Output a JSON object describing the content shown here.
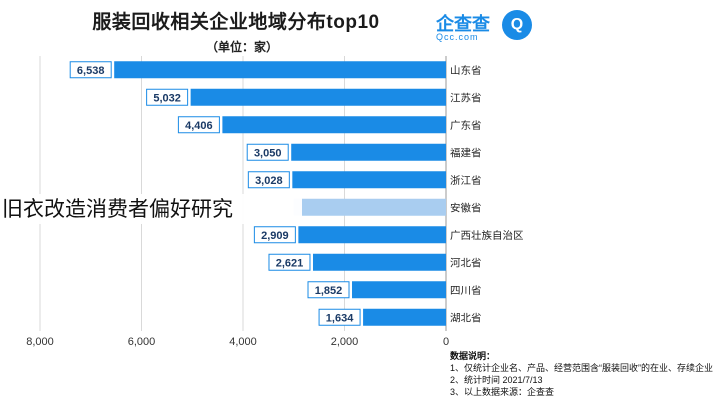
{
  "chart_data": {
    "type": "bar",
    "orientation": "horizontal",
    "title": "服装回收相关企业地域分布top10",
    "unit_label": "（单位：家）",
    "categories": [
      "山东省",
      "江苏省",
      "广东省",
      "福建省",
      "浙江省",
      "安徽省",
      "广西壮族自治区",
      "河北省",
      "四川省",
      "湖北省"
    ],
    "values": [
      6538,
      5032,
      4406,
      3050,
      3028,
      3000,
      2909,
      2621,
      1852,
      1634
    ],
    "value_labels": [
      "6,538",
      "5,032",
      "4,406",
      "3,050",
      "3,028",
      "",
      "2,909",
      "2,621",
      "1,852",
      "1,634"
    ],
    "highlight_index": 5,
    "x_ticks": [
      "8,000",
      "6,000",
      "4,000",
      "2,000",
      "0"
    ],
    "x_tick_values": [
      8000,
      6000,
      4000,
      2000,
      0
    ],
    "xlim": [
      0,
      8000
    ],
    "reversed_axis": true,
    "grid": true,
    "colors": {
      "bar": "#1a8be6",
      "highlight": "#a9cdf0",
      "label_bg": "#1a8be6"
    }
  },
  "logo": {
    "name": "企查查",
    "domain": "Qcc.com",
    "glyph": "Q"
  },
  "notes": {
    "title": "数据说明：",
    "lines": [
      "1、仅统计企业名、产品、经营范围含“服装回收”的在业、存续企业",
      "2、统计时间 2021/7/13",
      "3、以上数据来源：企查查"
    ]
  },
  "overlay_caption": "旧衣改造消费者偏好研究"
}
